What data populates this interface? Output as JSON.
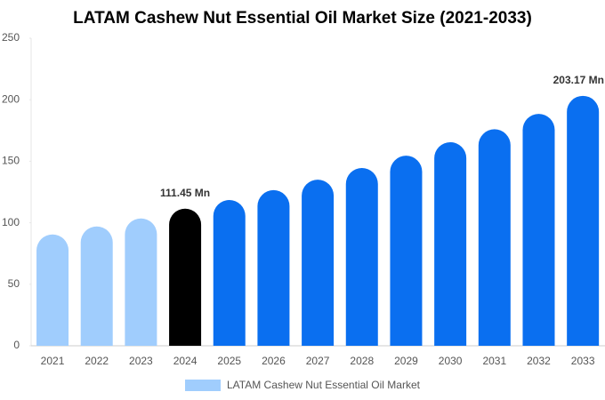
{
  "chart_data": {
    "type": "bar",
    "title": "LATAM Cashew Nut Essential Oil Market Size (2021-2033)",
    "categories": [
      "2021",
      "2022",
      "2023",
      "2024",
      "2025",
      "2026",
      "2027",
      "2028",
      "2029",
      "2030",
      "2031",
      "2032",
      "2033"
    ],
    "series": [
      {
        "name": "LATAM Cashew Nut Essential Oil Market",
        "color": "#a0cdfd",
        "values": [
          90.5,
          97,
          103.5,
          111.45,
          118.5,
          126.5,
          135,
          144.5,
          154.5,
          165.5,
          176,
          188.5,
          203.17
        ],
        "value_labels": [
          null,
          null,
          null,
          "111.45 Mn",
          null,
          null,
          null,
          null,
          null,
          null,
          null,
          null,
          "203.17 Mn"
        ],
        "colors": [
          "#a0cdfd",
          "#a0cdfd",
          "#a0cdfd",
          "#000000",
          "#0a6ff0",
          "#0a6ff0",
          "#0a6ff0",
          "#0a6ff0",
          "#0a6ff0",
          "#0a6ff0",
          "#0a6ff0",
          "#0a6ff0",
          "#0a6ff0"
        ]
      }
    ],
    "ylim": [
      0,
      250
    ],
    "yticks": [
      0,
      50,
      100,
      150,
      200,
      250
    ],
    "grid": false
  }
}
